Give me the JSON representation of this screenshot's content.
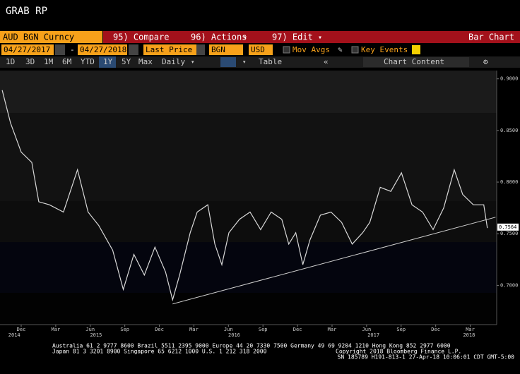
{
  "header": {
    "title": "GRAB RP"
  },
  "toolbar": {
    "security": "AUD BGN Curncy",
    "compare": "95) Compare",
    "actions": "96) Actions",
    "edit": "97) Edit",
    "view": "Bar Chart",
    "start_date": "04/27/2017",
    "dash": "-",
    "end_date": "04/27/2018",
    "field": "Last Price",
    "source": "BGN",
    "currency": "USD",
    "mov_avgs": "Mov Avgs",
    "key_events": "Key Events",
    "periods": [
      "1D",
      "3D",
      "1M",
      "6M",
      "YTD",
      "1Y",
      "5Y",
      "Max"
    ],
    "frequency": "Daily",
    "table": "Table",
    "chart_content": "Chart Content"
  },
  "chart_data": {
    "type": "line",
    "x": [
      -1.65,
      -0.92,
      0,
      0.92,
      1.53,
      2.45,
      3.67,
      4.89,
      5.81,
      6.73,
      7.95,
      8.87,
      9.79,
      10.7,
      11.62,
      12.54,
      13.15,
      13.76,
      14.68,
      15.29,
      16.21,
      16.82,
      17.43,
      18.04,
      18.96,
      19.88,
      20.8,
      21.71,
      22.63,
      23.24,
      23.85,
      24.46,
      25.08,
      25.99,
      26.91,
      27.83,
      28.75,
      29.66,
      30.28,
      31.19,
      32.11,
      33.03,
      33.94,
      34.86,
      35.78,
      36.7,
      37.61,
      38.35,
      39.27,
      40.18,
      40.49
    ],
    "series": [
      {
        "color": "#d8d8d8",
        "values": [
          0.889,
          0.857,
          0.829,
          0.819,
          0.781,
          0.778,
          0.771,
          0.812,
          0.771,
          0.758,
          0.734,
          0.696,
          0.73,
          0.71,
          0.737,
          0.713,
          0.686,
          0.71,
          0.751,
          0.771,
          0.778,
          0.74,
          0.72,
          0.751,
          0.764,
          0.771,
          0.754,
          0.771,
          0.764,
          0.74,
          0.751,
          0.72,
          0.744,
          0.768,
          0.771,
          0.761,
          0.74,
          0.751,
          0.761,
          0.795,
          0.791,
          0.809,
          0.778,
          0.771,
          0.754,
          0.775,
          0.812,
          0.788,
          0.778,
          0.778,
          0.7555
        ]
      }
    ],
    "trendline": {
      "x": [
        13.15,
        41.2
      ],
      "values": [
        0.682,
        0.766
      ]
    },
    "last_price": 0.7564,
    "xlim": [
      -1.84,
      41.3
    ],
    "ylim": [
      0.662,
      0.908
    ],
    "yticks": [
      {
        "value": 0.9,
        "label": "0.9000"
      },
      {
        "value": 0.85,
        "label": "0.8500"
      },
      {
        "value": 0.8,
        "label": "0.8000"
      },
      {
        "value": 0.75,
        "label": "0.7500"
      },
      {
        "value": 0.7,
        "label": "0.7000"
      }
    ],
    "xticks": [
      {
        "value": 0,
        "label": "Dec"
      },
      {
        "value": 3,
        "label": "Mar"
      },
      {
        "value": 6,
        "label": "Jun"
      },
      {
        "value": 9,
        "label": "Sep"
      },
      {
        "value": 12,
        "label": "Dec"
      },
      {
        "value": 15,
        "label": "Mar"
      },
      {
        "value": 18,
        "label": "Jun"
      },
      {
        "value": 21,
        "label": "Sep"
      },
      {
        "value": 24,
        "label": "Dec"
      },
      {
        "value": 27,
        "label": "Mar"
      },
      {
        "value": 30,
        "label": "Jun"
      },
      {
        "value": 33,
        "label": "Sep"
      },
      {
        "value": 36,
        "label": "Dec"
      },
      {
        "value": 39,
        "label": "Mar"
      }
    ],
    "year_ticks": [
      {
        "value": -0.6,
        "label": "2014"
      },
      {
        "value": 6.5,
        "label": "2015"
      },
      {
        "value": 18.5,
        "label": "2016"
      },
      {
        "value": 30.6,
        "label": "2017"
      },
      {
        "value": 38.9,
        "label": "2018"
      }
    ]
  },
  "footer": {
    "line1": "Australia 61 2 9777 8600 Brazil 5511 2395 9000 Europe 44 20 7330 7500 Germany 49 69 9204 1210 Hong Kong 852 2977 6000",
    "line2": "Japan 81 3 3201 8900        Singapore 65 6212 1000        U.S. 1 212 318 2000",
    "copyright": "Copyright 2018 Bloomberg Finance L.P.",
    "session": "SN 185789 H191-813-1 27-Apr-18 10:06:01 CDT  GMT-5:00"
  }
}
